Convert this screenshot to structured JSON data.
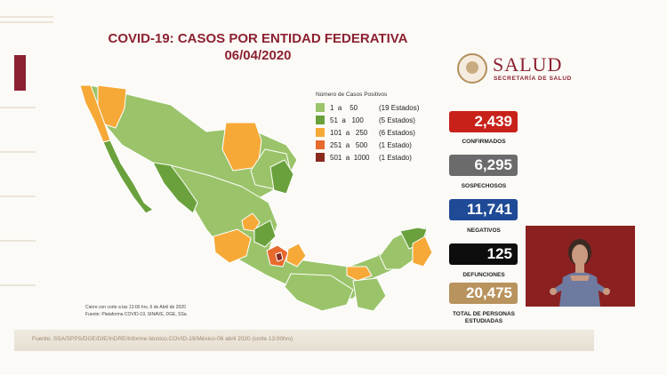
{
  "title": {
    "line1": "COVID-19: CASOS POR ENTIDAD FEDERATIVA",
    "line2": "06/04/2020"
  },
  "logo": {
    "name": "SALUD",
    "subtitle": "SECRETARÍA DE SALUD"
  },
  "legend": {
    "title": "Número de Casos Positivos",
    "items": [
      {
        "range": "1  a    50",
        "count": "(19 Estados)",
        "color": "#9bc46a"
      },
      {
        "range": "51  a   100",
        "count": "(5 Estados)",
        "color": "#6aa13c"
      },
      {
        "range": "101  a   250",
        "count": "(6 Estados)",
        "color": "#f6a937"
      },
      {
        "range": "251  a   500",
        "count": "(1 Estado)",
        "color": "#e8692c"
      },
      {
        "range": "501  a  1000",
        "count": "(1 Estado)",
        "color": "#8a2a1e"
      }
    ]
  },
  "stats": [
    {
      "value": "2,439",
      "label": "CONFIRMADOS",
      "color": "#c8211a"
    },
    {
      "value": "6,295",
      "label": "SOSPECHOSOS",
      "color": "#6b6b6b"
    },
    {
      "value": "11,741",
      "label": "NEGATIVOS",
      "color": "#1f4a96"
    },
    {
      "value": "125",
      "label": "DEFUNCIONES",
      "color": "#0d0d0d"
    },
    {
      "value": "20,475",
      "label": "TOTAL DE PERSONAS ESTUDIADAS",
      "color": "#b8935e"
    }
  ],
  "notes": {
    "line1": "Cierre con corte a las 13:00 hrs, 6 de Abril de 2020",
    "line2": "Fuente: Plataforma COVID-19, SINAVE, DGE, SSa."
  },
  "footer": {
    "source": "Fuente: SSA/SPPS/DGE/DIE/InDRE/Informe técnico.COVID-19/México-06 abril 2020 (corte 13:00hrs)"
  },
  "colors": {
    "brand": "#8c2131",
    "map_lvl1": "#9bc46a",
    "map_lvl2": "#6aa13c",
    "map_lvl3": "#f6a937",
    "map_lvl4": "#e8692c",
    "map_lvl5": "#8a2a1e"
  }
}
